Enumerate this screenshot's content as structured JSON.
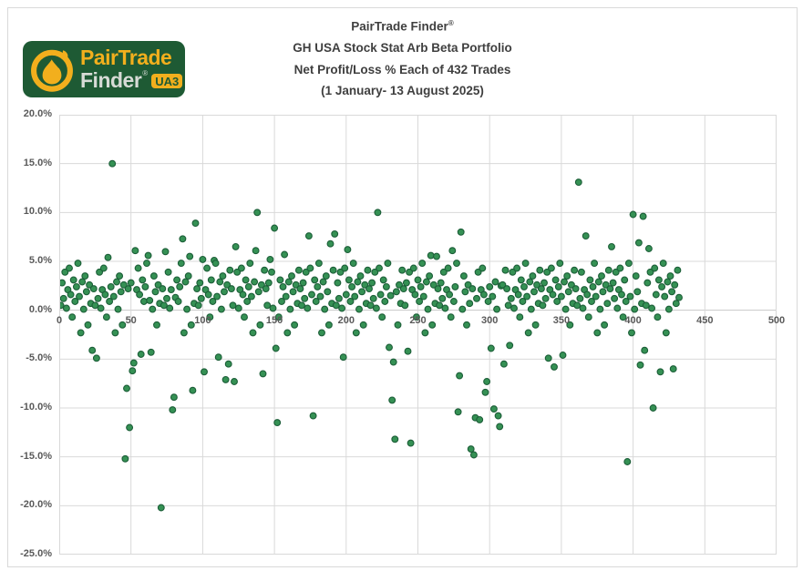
{
  "logo": {
    "brand_line1": "PairTrade",
    "brand_line2": "Finder",
    "registered_mark": "®",
    "badge": "UA3",
    "colors": {
      "bg": "#1e5a34",
      "gold": "#f2af1d",
      "silver": "#d7dbd6"
    }
  },
  "title": {
    "line1": "PairTrade Finder",
    "registered": "®",
    "line2": "GH USA Stock Stat Arb Beta Portfolio",
    "line3": "Net Profit/Loss % Each of 432 Trades",
    "line4": "(1 January- 13 August 2025)"
  },
  "chart_data": {
    "type": "scatter",
    "title": "PairTrade Finder® GH USA Stock Stat Arb Beta Portfolio Net Profit/Loss % Each of 432 Trades (1 January- 13 August 2025)",
    "xlabel": "",
    "ylabel": "",
    "xlim": [
      0,
      500
    ],
    "ylim": [
      -25,
      20
    ],
    "x_ticks": [
      0,
      50,
      100,
      150,
      200,
      250,
      300,
      350,
      400,
      450,
      500
    ],
    "x_tick_labels": [
      "0",
      "50",
      "100",
      "150",
      "200",
      "250",
      "300",
      "350",
      "400",
      "450",
      "500"
    ],
    "y_ticks": [
      20,
      15,
      10,
      5,
      0,
      -5,
      -10,
      -15,
      -20,
      -25
    ],
    "y_tick_labels": [
      "20.0%",
      "15.0%",
      "10.0%",
      "5.0%",
      "0.0%",
      "-5.0%",
      "-10.0%",
      "-15.0%",
      "-20.0%",
      "-25.0%"
    ],
    "grid": true,
    "legend": false,
    "grid_color": "#d9d9d9",
    "zero_line_color": "#c8c8c8",
    "marker_color": "#359154",
    "marker_edge_color": "#1c5e38",
    "n_trades": 432,
    "x_is_trade_number_starting_at_1": true,
    "values": [
      0.5,
      2.8,
      1.2,
      3.9,
      0.2,
      2.1,
      4.3,
      1.6,
      -0.7,
      3.1,
      0.9,
      2.4,
      4.8,
      1.4,
      -2.3,
      2.9,
      0.1,
      3.5,
      1.9,
      -1.5,
      2.6,
      0.7,
      -4.1,
      2.2,
      0.5,
      -4.9,
      1.2,
      3.9,
      0.2,
      2.1,
      4.3,
      1.6,
      -0.7,
      5.4,
      0.9,
      2.4,
      15.0,
      1.4,
      -2.3,
      2.9,
      0.1,
      3.5,
      1.9,
      -1.5,
      2.6,
      -15.2,
      -8.0,
      2.2,
      -12.0,
      2.8,
      -6.2,
      -5.4,
      6.1,
      2.1,
      4.3,
      1.6,
      -4.5,
      3.1,
      0.9,
      2.4,
      4.8,
      5.6,
      1.0,
      -4.3,
      0.1,
      3.5,
      1.9,
      -1.5,
      2.6,
      0.7,
      -20.2,
      2.2,
      0.5,
      6.0,
      1.2,
      3.9,
      0.2,
      2.1,
      -10.2,
      -8.9,
      1.3,
      3.1,
      0.9,
      2.4,
      4.8,
      7.3,
      -2.3,
      2.9,
      0.1,
      3.5,
      5.5,
      -1.5,
      -8.2,
      0.7,
      8.9,
      2.2,
      0.5,
      2.8,
      1.2,
      5.2,
      -6.3,
      2.1,
      4.3,
      1.6,
      -0.7,
      3.1,
      0.9,
      5.1,
      4.8,
      1.4,
      -4.8,
      2.9,
      0.1,
      3.5,
      1.9,
      -7.1,
      2.6,
      -5.5,
      4.1,
      2.2,
      0.5,
      -7.3,
      6.5,
      3.9,
      0.2,
      2.1,
      4.3,
      1.6,
      -0.7,
      3.1,
      0.9,
      2.4,
      4.8,
      1.4,
      -2.3,
      2.9,
      6.1,
      10.0,
      1.9,
      -1.5,
      2.6,
      -6.5,
      4.1,
      2.2,
      0.5,
      2.8,
      5.2,
      3.9,
      0.2,
      8.4,
      -3.9,
      -11.5,
      -0.7,
      3.1,
      0.9,
      2.4,
      5.7,
      1.4,
      -2.3,
      2.9,
      0.1,
      3.5,
      1.9,
      -1.5,
      2.6,
      0.7,
      4.1,
      2.2,
      0.5,
      2.8,
      1.2,
      3.9,
      0.2,
      7.6,
      4.3,
      1.6,
      -10.8,
      3.1,
      0.9,
      2.4,
      4.8,
      1.4,
      -2.3,
      2.9,
      0.1,
      3.5,
      1.9,
      -1.5,
      6.8,
      0.7,
      4.1,
      7.8,
      0.5,
      2.8,
      1.2,
      3.9,
      0.2,
      -4.8,
      4.3,
      1.6,
      6.2,
      3.1,
      0.9,
      2.4,
      4.8,
      1.4,
      -2.3,
      2.9,
      0.1,
      3.5,
      1.9,
      -1.5,
      2.6,
      0.7,
      4.1,
      2.2,
      0.5,
      2.8,
      1.2,
      3.9,
      0.2,
      10.0,
      4.3,
      1.6,
      -0.7,
      3.1,
      0.9,
      2.4,
      4.8,
      -3.8,
      1.5,
      -9.2,
      -5.3,
      -13.2,
      1.9,
      -1.5,
      2.6,
      0.7,
      4.1,
      2.2,
      0.5,
      2.8,
      -4.2,
      3.9,
      -13.6,
      2.1,
      4.3,
      1.6,
      -0.7,
      3.1,
      0.9,
      2.4,
      4.8,
      1.4,
      -2.3,
      2.9,
      0.1,
      3.5,
      5.6,
      -1.5,
      2.6,
      0.7,
      5.5,
      2.2,
      0.5,
      2.8,
      1.2,
      3.9,
      0.2,
      2.1,
      4.3,
      1.6,
      -0.7,
      6.1,
      0.9,
      2.4,
      4.8,
      -10.4,
      -6.7,
      8.0,
      0.1,
      3.5,
      1.9,
      -1.5,
      2.6,
      0.7,
      -14.2,
      2.2,
      -14.8,
      -11.0,
      1.2,
      3.9,
      -11.2,
      2.1,
      4.3,
      1.6,
      -8.4,
      -7.3,
      0.9,
      2.4,
      -3.9,
      1.4,
      -10.1,
      2.9,
      0.1,
      -10.8,
      -11.9,
      2.5,
      2.6,
      -5.5,
      4.1,
      2.2,
      0.5,
      -3.6,
      1.2,
      3.9,
      0.2,
      2.1,
      4.3,
      1.6,
      -0.7,
      3.1,
      0.9,
      2.4,
      4.8,
      1.4,
      -2.3,
      2.9,
      0.1,
      3.5,
      1.9,
      -1.5,
      2.6,
      0.7,
      4.1,
      2.2,
      0.5,
      2.8,
      1.2,
      3.9,
      -4.9,
      2.1,
      4.3,
      1.6,
      -5.8,
      3.1,
      0.9,
      2.4,
      4.8,
      1.4,
      -4.6,
      2.9,
      0.1,
      3.5,
      1.9,
      -1.5,
      2.6,
      0.7,
      4.1,
      2.2,
      0.5,
      13.1,
      1.2,
      3.9,
      0.2,
      2.1,
      7.6,
      1.6,
      -0.7,
      3.1,
      0.9,
      2.4,
      4.8,
      1.4,
      -2.3,
      2.9,
      0.1,
      3.5,
      1.9,
      -1.5,
      2.6,
      0.7,
      4.1,
      2.2,
      6.5,
      2.8,
      1.2,
      3.9,
      0.2,
      2.1,
      4.3,
      1.6,
      -0.7,
      3.1,
      0.9,
      -15.5,
      4.8,
      1.4,
      -2.3,
      9.8,
      0.1,
      3.5,
      1.9,
      6.9,
      -5.6,
      0.7,
      9.6,
      -4.1,
      0.5,
      2.8,
      6.3,
      3.9,
      0.2,
      -10.0,
      4.3,
      1.6,
      -0.7,
      3.1,
      -6.3,
      2.4,
      4.8,
      1.4,
      -2.3,
      2.9,
      0.1,
      3.5,
      1.9,
      -6.0,
      2.6,
      0.7,
      4.1,
      1.3
    ]
  }
}
